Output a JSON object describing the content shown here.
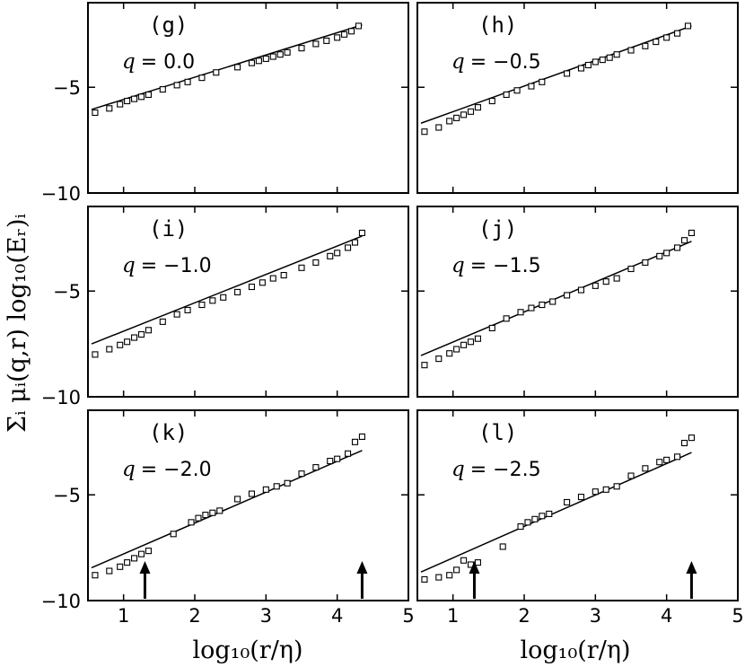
{
  "chart_data": {
    "type": "scatter",
    "ylabel": "Σᵢ μᵢ(q,r) log₁₀(Eᵣ)ᵢ",
    "xlabel": "log₁₀(r/η)",
    "xlim": [
      0.5,
      5.0
    ],
    "ylim": [
      -10.0,
      -1.0
    ],
    "xticks": [
      "1",
      "2",
      "3",
      "4",
      "5"
    ],
    "yticks": [
      "−5",
      "−10"
    ],
    "arrows_x": [
      1.3,
      4.35
    ],
    "panels": [
      {
        "label": "(g)",
        "q_prefix": "q",
        "q_value": "= 0.0",
        "fit": {
          "x": [
            0.55,
            4.35
          ],
          "y": [
            -6.05,
            -2.05
          ]
        },
        "points": {
          "x": [
            0.6,
            0.8,
            0.95,
            1.05,
            1.15,
            1.25,
            1.35,
            1.55,
            1.75,
            1.9,
            2.1,
            2.3,
            2.6,
            2.8,
            2.9,
            3.0,
            3.1,
            3.2,
            3.3,
            3.5,
            3.7,
            3.85,
            4.0,
            4.1,
            4.2,
            4.3
          ],
          "y": [
            -6.2,
            -6.0,
            -5.8,
            -5.65,
            -5.55,
            -5.45,
            -5.35,
            -5.1,
            -4.9,
            -4.75,
            -4.55,
            -4.3,
            -4.05,
            -3.85,
            -3.75,
            -3.65,
            -3.55,
            -3.45,
            -3.35,
            -3.15,
            -2.95,
            -2.8,
            -2.65,
            -2.5,
            -2.35,
            -2.1
          ]
        }
      },
      {
        "label": "(h)",
        "q_prefix": "q",
        "q_value": "= −0.5",
        "fit": {
          "x": [
            0.55,
            4.35
          ],
          "y": [
            -6.7,
            -2.1
          ]
        },
        "points": {
          "x": [
            0.6,
            0.8,
            0.95,
            1.05,
            1.15,
            1.25,
            1.35,
            1.55,
            1.75,
            1.9,
            2.1,
            2.25,
            2.6,
            2.8,
            2.9,
            3.0,
            3.1,
            3.2,
            3.3,
            3.5,
            3.7,
            3.85,
            4.0,
            4.15,
            4.3
          ],
          "y": [
            -7.1,
            -6.9,
            -6.6,
            -6.45,
            -6.3,
            -6.15,
            -5.95,
            -5.65,
            -5.35,
            -5.15,
            -4.95,
            -4.75,
            -4.35,
            -4.1,
            -3.95,
            -3.8,
            -3.7,
            -3.6,
            -3.45,
            -3.25,
            -3.05,
            -2.85,
            -2.65,
            -2.45,
            -2.1
          ]
        }
      },
      {
        "label": "(i)",
        "q_prefix": "q",
        "q_value": "= −1.0",
        "fit": {
          "x": [
            0.55,
            4.35
          ],
          "y": [
            -7.5,
            -2.4
          ]
        },
        "points": {
          "x": [
            0.6,
            0.8,
            0.95,
            1.05,
            1.15,
            1.25,
            1.35,
            1.55,
            1.75,
            1.9,
            2.1,
            2.25,
            2.4,
            2.6,
            2.8,
            2.95,
            3.1,
            3.25,
            3.5,
            3.7,
            3.9,
            4.0,
            4.15,
            4.25,
            4.35
          ],
          "y": [
            -8.0,
            -7.75,
            -7.55,
            -7.4,
            -7.2,
            -7.05,
            -6.85,
            -6.45,
            -6.1,
            -5.9,
            -5.65,
            -5.45,
            -5.3,
            -5.05,
            -4.8,
            -4.6,
            -4.4,
            -4.25,
            -3.9,
            -3.65,
            -3.35,
            -3.2,
            -2.95,
            -2.7,
            -2.25
          ]
        }
      },
      {
        "label": "(j)",
        "q_prefix": "q",
        "q_value": "= −1.5",
        "fit": {
          "x": [
            0.55,
            4.35
          ],
          "y": [
            -8.05,
            -2.65
          ]
        },
        "points": {
          "x": [
            0.6,
            0.8,
            0.95,
            1.05,
            1.15,
            1.25,
            1.35,
            1.55,
            1.75,
            1.95,
            2.1,
            2.25,
            2.4,
            2.6,
            2.8,
            3.0,
            3.15,
            3.3,
            3.5,
            3.7,
            3.9,
            4.0,
            4.15,
            4.25,
            4.35
          ],
          "y": [
            -8.5,
            -8.2,
            -7.95,
            -7.75,
            -7.55,
            -7.4,
            -7.25,
            -6.75,
            -6.3,
            -6.0,
            -5.8,
            -5.65,
            -5.5,
            -5.2,
            -4.95,
            -4.75,
            -4.55,
            -4.4,
            -3.95,
            -3.65,
            -3.35,
            -3.2,
            -2.95,
            -2.6,
            -2.25
          ]
        }
      },
      {
        "label": "(k)",
        "q_prefix": "q",
        "q_value": "= −2.0",
        "fit": {
          "x": [
            0.55,
            4.35
          ],
          "y": [
            -8.45,
            -2.9
          ]
        },
        "points": {
          "x": [
            0.6,
            0.8,
            0.95,
            1.05,
            1.15,
            1.25,
            1.35,
            1.7,
            1.95,
            2.05,
            2.15,
            2.25,
            2.35,
            2.6,
            2.8,
            3.0,
            3.15,
            3.3,
            3.5,
            3.7,
            3.9,
            4.0,
            4.15,
            4.25,
            4.35
          ],
          "y": [
            -8.8,
            -8.6,
            -8.4,
            -8.2,
            -8.0,
            -7.8,
            -7.65,
            -6.85,
            -6.3,
            -6.1,
            -5.95,
            -5.85,
            -5.75,
            -5.2,
            -4.95,
            -4.75,
            -4.6,
            -4.45,
            -4.0,
            -3.7,
            -3.4,
            -3.3,
            -3.05,
            -2.5,
            -2.25
          ]
        }
      },
      {
        "label": "(l)",
        "q_prefix": "q",
        "q_value": "= −2.5",
        "fit": {
          "x": [
            0.55,
            4.35
          ],
          "y": [
            -8.65,
            -3.0
          ]
        },
        "points": {
          "x": [
            0.6,
            0.8,
            0.95,
            1.05,
            1.15,
            1.25,
            1.35,
            1.7,
            1.95,
            2.05,
            2.15,
            2.25,
            2.35,
            2.6,
            2.8,
            3.0,
            3.15,
            3.3,
            3.5,
            3.7,
            3.9,
            4.0,
            4.15,
            4.25,
            4.35
          ],
          "y": [
            -9.0,
            -8.9,
            -8.8,
            -8.55,
            -8.1,
            -8.3,
            -8.2,
            -7.45,
            -6.5,
            -6.3,
            -6.15,
            -6.0,
            -5.9,
            -5.35,
            -5.1,
            -4.85,
            -4.75,
            -4.6,
            -4.1,
            -3.75,
            -3.45,
            -3.35,
            -3.2,
            -2.55,
            -2.3
          ]
        }
      }
    ]
  }
}
